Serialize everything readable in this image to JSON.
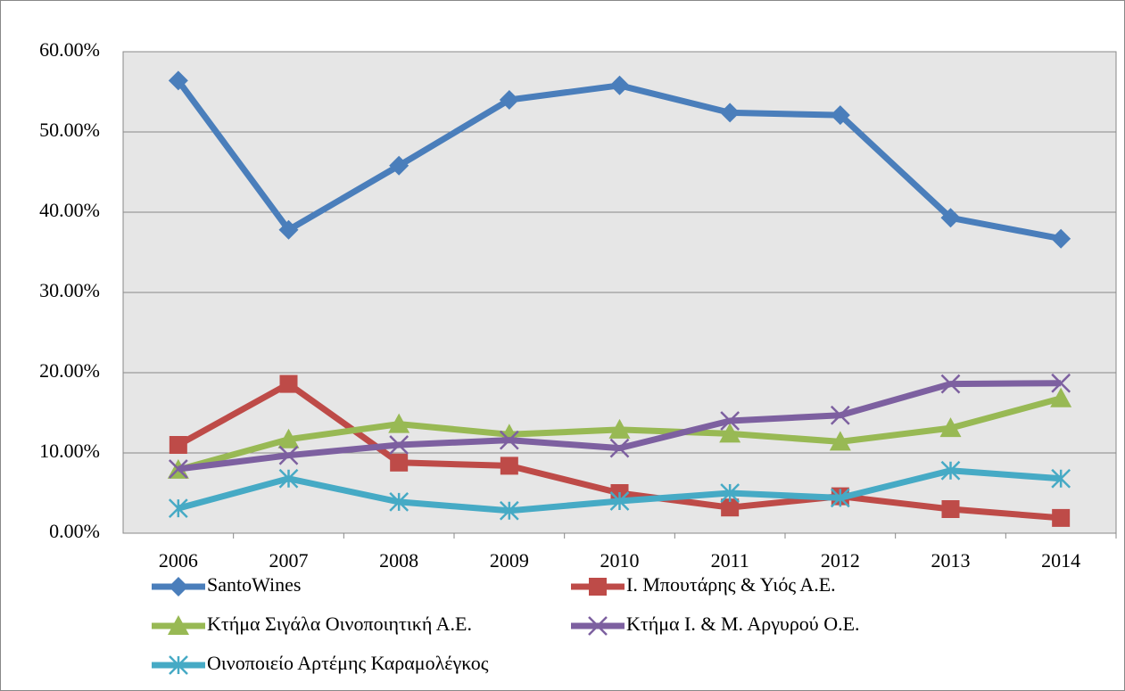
{
  "chart_data": {
    "type": "line",
    "categories": [
      "2006",
      "2007",
      "2008",
      "2009",
      "2010",
      "2011",
      "2012",
      "2013",
      "2014"
    ],
    "series": [
      {
        "name": "SantoWines",
        "color": "#4a7ebb",
        "marker": "diamond",
        "values": [
          56.4,
          37.8,
          45.8,
          54.0,
          55.8,
          52.4,
          52.1,
          39.3,
          36.7
        ]
      },
      {
        "name": "Ι. Μπουτάρης & Υιός Α.Ε.",
        "color": "#be4b48",
        "marker": "square",
        "values": [
          11.0,
          18.6,
          8.8,
          8.4,
          5.0,
          3.2,
          4.6,
          3.0,
          1.9
        ]
      },
      {
        "name": "Κτήμα Σιγάλα Οινοποιητική Α.Ε.",
        "color": "#98b954",
        "marker": "triangle",
        "values": [
          7.9,
          11.7,
          13.6,
          12.3,
          12.9,
          12.4,
          11.4,
          13.1,
          16.8
        ]
      },
      {
        "name": "Κτήμα Ι. & Μ. Αργυρού Ο.Ε.",
        "color": "#7d60a0",
        "marker": "x",
        "values": [
          8.0,
          9.7,
          11.0,
          11.6,
          10.6,
          14.0,
          14.7,
          18.6,
          18.7
        ]
      },
      {
        "name": "Οινοποιείο Αρτέμης Καραμολέγκος",
        "color": "#46aac5",
        "marker": "star",
        "values": [
          3.1,
          6.8,
          3.9,
          2.8,
          4.0,
          5.0,
          4.4,
          7.8,
          6.8
        ]
      }
    ],
    "ylim": [
      0,
      60
    ],
    "yticks": [
      {
        "value": 0,
        "label": "0.00%"
      },
      {
        "value": 10,
        "label": "10.00%"
      },
      {
        "value": 20,
        "label": "20.00%"
      },
      {
        "value": 30,
        "label": "30.00%"
      },
      {
        "value": 40,
        "label": "40.00%"
      },
      {
        "value": 50,
        "label": "50.00%"
      },
      {
        "value": 60,
        "label": "60.00%"
      }
    ],
    "grid": true
  }
}
